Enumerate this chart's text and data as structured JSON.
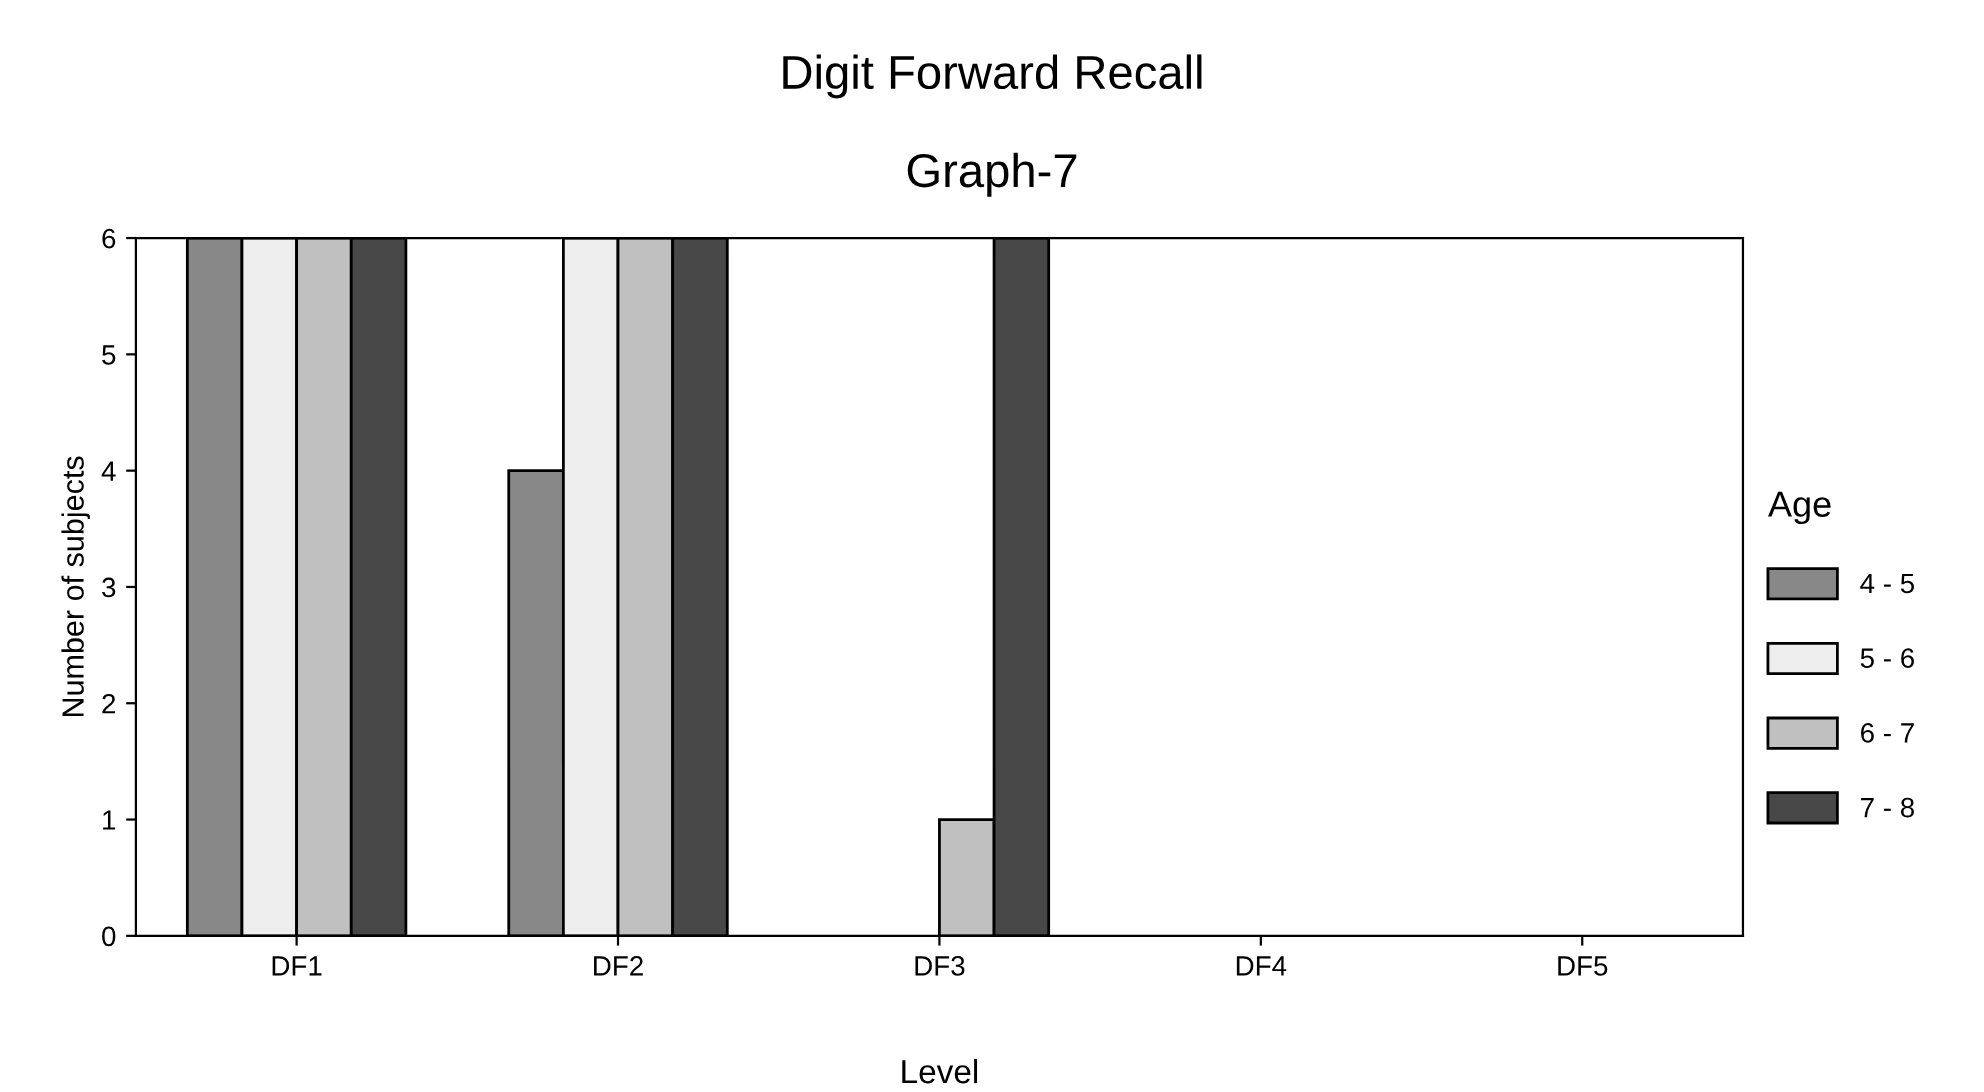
{
  "chart_data": {
    "type": "bar",
    "title": "Digit Forward Recall",
    "subtitle": "Graph-7",
    "xlabel": "Level",
    "ylabel": "Number of subjects",
    "legend_title": "Age",
    "categories": [
      "DF1",
      "DF2",
      "DF3",
      "DF4",
      "DF5"
    ],
    "series": [
      {
        "name": "4 - 5",
        "color": "#888888",
        "values": [
          6,
          4,
          0,
          0,
          0
        ]
      },
      {
        "name": "5 - 6",
        "color": "#eeeeee",
        "values": [
          6,
          6,
          0,
          0,
          0
        ]
      },
      {
        "name": "6 - 7",
        "color": "#c0c0c0",
        "values": [
          6,
          6,
          1,
          0,
          0
        ]
      },
      {
        "name": "7 - 8",
        "color": "#484848",
        "values": [
          6,
          6,
          6,
          0,
          0
        ]
      }
    ],
    "ylim": [
      0,
      6
    ],
    "yticks": [
      0,
      1,
      2,
      3,
      4,
      5,
      6
    ],
    "grid": false,
    "legend": "right"
  }
}
